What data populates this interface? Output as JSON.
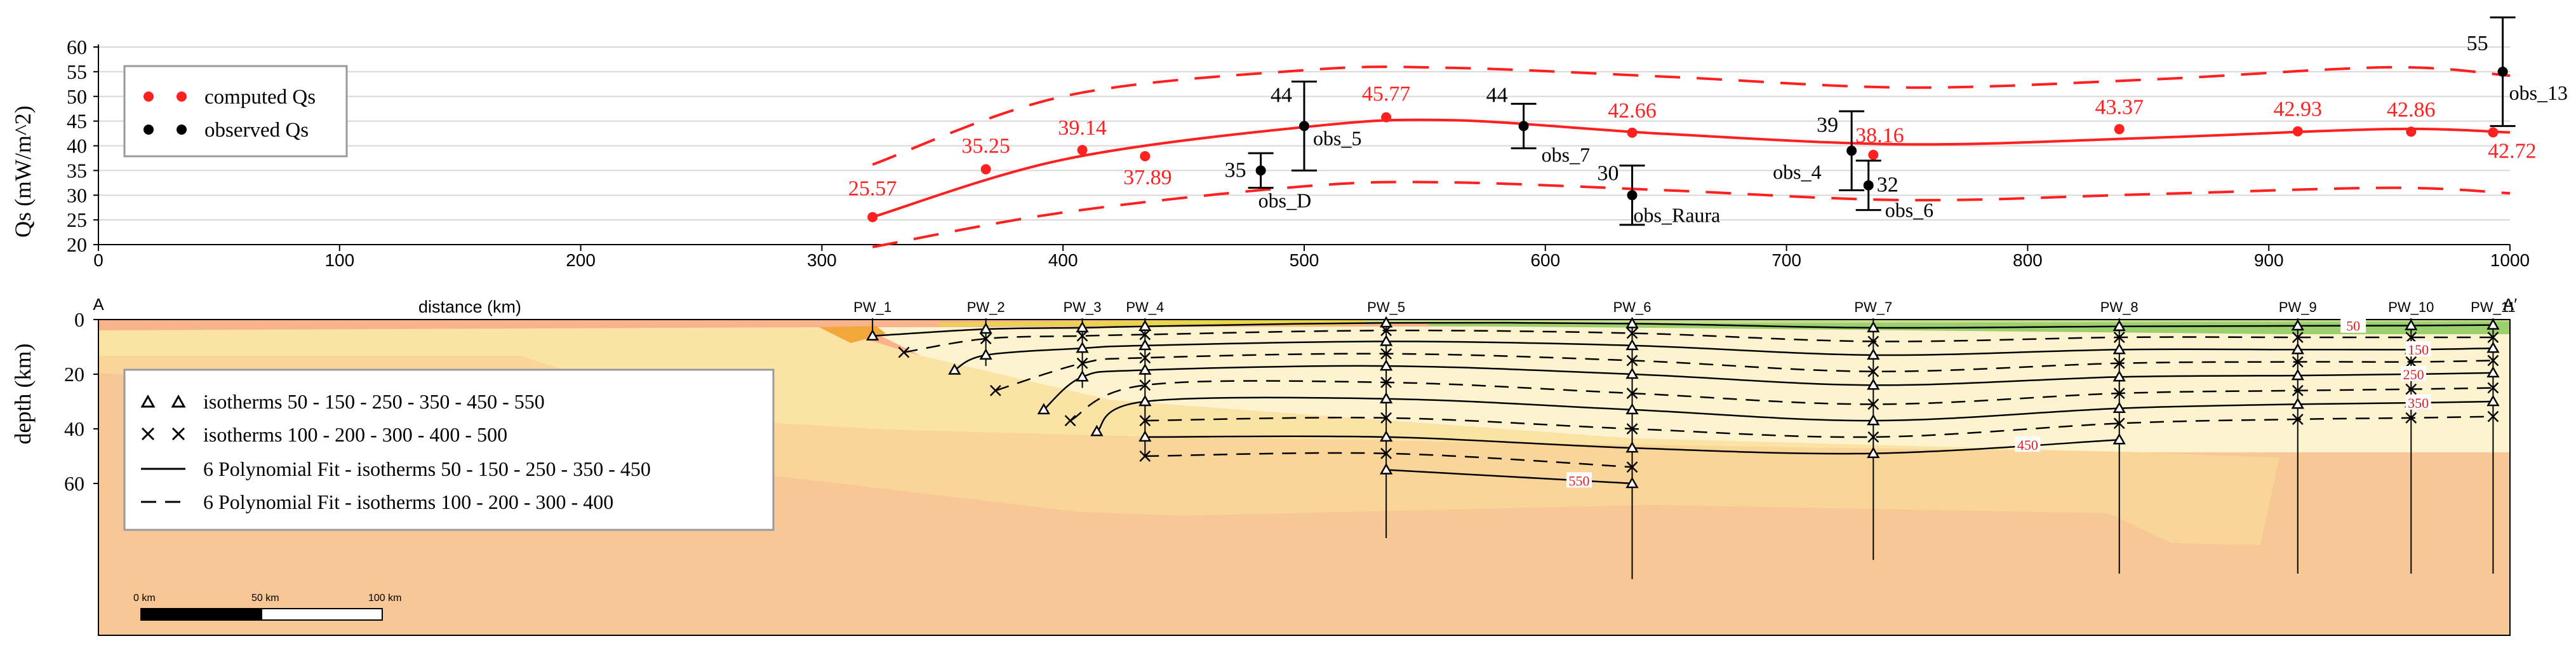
{
  "colors": {
    "computed": "#ff2020",
    "observed": "#000000",
    "envelope": "#ff2020",
    "grid": "#d8d8d8",
    "axis": "#000000",
    "crust_sediment": "#fde9b8",
    "crust_upper": "#f7c795",
    "crust_lower": "#f9b38c",
    "mantle": "#ff8080",
    "mid_layer": "#fbe3a6",
    "slab": "#fad59a",
    "wedge": "#fdf3cf",
    "green_surface": "#9ccf6d",
    "surface_cover": "#c6dc8e",
    "yellow_surface": "#e7d64a",
    "orange_unit": "#f2a73b",
    "iso_label": "#e02020"
  },
  "chart_data": [
    {
      "type": "scatter",
      "title": "",
      "xlabel": "",
      "ylabel": "Qs (mW/m^2)",
      "xlim": [
        0,
        1000
      ],
      "ylim": [
        20,
        60
      ],
      "xticks": [
        0,
        100,
        200,
        300,
        400,
        500,
        600,
        700,
        800,
        900,
        1000
      ],
      "yticks": [
        20,
        25,
        30,
        35,
        40,
        45,
        50,
        55,
        60
      ],
      "grid": true,
      "legend": "top-left",
      "legend_entries": [
        "computed Qs",
        "observed Qs"
      ],
      "computed": [
        {
          "x": 321,
          "y": 25.57,
          "label": "25.57"
        },
        {
          "x": 368,
          "y": 35.25,
          "label": "35.25"
        },
        {
          "x": 408,
          "y": 39.14,
          "label": "39.14"
        },
        {
          "x": 434,
          "y": 37.89,
          "label": "37.89"
        },
        {
          "x": 534,
          "y": 45.77,
          "label": "45.77"
        },
        {
          "x": 636,
          "y": 42.66,
          "label": "42.66"
        },
        {
          "x": 736,
          "y": 38.16,
          "label": "38.16"
        },
        {
          "x": 838,
          "y": 43.37,
          "label": "43.37"
        },
        {
          "x": 912,
          "y": 42.93,
          "label": "42.93"
        },
        {
          "x": 959,
          "y": 42.86,
          "label": "42.86"
        },
        {
          "x": 993,
          "y": 42.72,
          "label": "42.72"
        }
      ],
      "observed": [
        {
          "x": 482,
          "y": 35,
          "err": 3.5,
          "value_label": "35",
          "name": "obs_D"
        },
        {
          "x": 500,
          "y": 44,
          "err": 9,
          "value_label": "44",
          "name": "obs_5"
        },
        {
          "x": 591,
          "y": 44,
          "err": 4.5,
          "value_label": "44",
          "name": "obs_7"
        },
        {
          "x": 636,
          "y": 30,
          "err": 6,
          "value_label": "30",
          "name": "obs_Raura"
        },
        {
          "x": 727,
          "y": 39,
          "err": 8,
          "value_label": "39",
          "name": "obs_4"
        },
        {
          "x": 734,
          "y": 32,
          "err": 5,
          "value_label": "32",
          "name": "obs_6"
        },
        {
          "x": 997,
          "y": 55,
          "err": 11,
          "value_label": "55",
          "name": "obs_13"
        }
      ],
      "fit_curve": {
        "x": [
          321,
          400,
          500,
          560,
          650,
          750,
          850,
          950,
          1000
        ],
        "y": [
          25.57,
          37.2,
          43.8,
          45.2,
          42.4,
          40.3,
          41.6,
          43.4,
          42.72
        ]
      },
      "upper_envelope": {
        "x": [
          321,
          400,
          500,
          560,
          650,
          750,
          850,
          950,
          1000
        ],
        "y": [
          36.2,
          50,
          55.3,
          55.8,
          54,
          51.8,
          53.4,
          55.9,
          54.2
        ]
      },
      "lower_envelope": {
        "x": [
          321,
          400,
          500,
          560,
          650,
          750,
          850,
          950,
          1000
        ],
        "y": [
          19.5,
          26.5,
          31.8,
          32.6,
          31,
          29,
          30.2,
          31.5,
          30.4
        ]
      }
    },
    {
      "type": "cross-section",
      "xlabel": "distance (km)",
      "ylabel": "depth (km)",
      "xlim": [
        0,
        1000
      ],
      "ylim": [
        0,
        130
      ],
      "yticks": [
        0,
        20,
        40,
        60
      ],
      "profile_start": "A",
      "profile_end": "A′",
      "wells": [
        {
          "name": "PW_1",
          "x": 321,
          "depth": 6
        },
        {
          "name": "PW_2",
          "x": 368,
          "depth": 17
        },
        {
          "name": "PW_3",
          "x": 408,
          "depth": 25
        },
        {
          "name": "PW_4",
          "x": 434,
          "depth": 50
        },
        {
          "name": "PW_5",
          "x": 534,
          "depth": 80
        },
        {
          "name": "PW_6",
          "x": 636,
          "depth": 95
        },
        {
          "name": "PW_7",
          "x": 736,
          "depth": 88
        },
        {
          "name": "PW_8",
          "x": 838,
          "depth": 93
        },
        {
          "name": "PW_9",
          "x": 912,
          "depth": 93
        },
        {
          "name": "PW_10",
          "x": 959,
          "depth": 93
        },
        {
          "name": "PW_11",
          "x": 993,
          "depth": 93
        }
      ],
      "isotherms": [
        {
          "temp": 50,
          "kind": "triangle",
          "label": "50",
          "label_x": 935,
          "points": [
            [
              321,
              6
            ],
            [
              368,
              3.5
            ],
            [
              408,
              3
            ],
            [
              434,
              2.5
            ],
            [
              534,
              1.2
            ],
            [
              636,
              1.5
            ],
            [
              736,
              3
            ],
            [
              838,
              2.5
            ],
            [
              912,
              2.3
            ],
            [
              959,
              2.2
            ],
            [
              993,
              2
            ]
          ]
        },
        {
          "temp": 100,
          "kind": "cross",
          "label": "",
          "label_x": null,
          "points": [
            [
              334,
              12
            ],
            [
              368,
              7
            ],
            [
              408,
              6
            ],
            [
              434,
              5.5
            ],
            [
              534,
              4
            ],
            [
              636,
              5
            ],
            [
              736,
              8
            ],
            [
              838,
              6.5
            ],
            [
              912,
              6.5
            ],
            [
              959,
              6.5
            ],
            [
              993,
              6.5
            ]
          ]
        },
        {
          "temp": 150,
          "kind": "triangle",
          "label": "150",
          "label_x": 962,
          "points": [
            [
              355,
              18.5
            ],
            [
              368,
              13
            ],
            [
              408,
              10.5
            ],
            [
              434,
              9.5
            ],
            [
              534,
              8
            ],
            [
              636,
              9.5
            ],
            [
              736,
              13
            ],
            [
              838,
              11
            ],
            [
              912,
              11
            ],
            [
              959,
              11
            ],
            [
              993,
              10.5
            ]
          ]
        },
        {
          "temp": 200,
          "kind": "cross",
          "label": "",
          "label_x": null,
          "points": [
            [
              372,
              26
            ],
            [
              408,
              16
            ],
            [
              434,
              14
            ],
            [
              534,
              12.5
            ],
            [
              636,
              15
            ],
            [
              736,
              19
            ],
            [
              838,
              16
            ],
            [
              912,
              15.5
            ],
            [
              959,
              15.5
            ],
            [
              993,
              15
            ]
          ]
        },
        {
          "temp": 250,
          "kind": "triangle",
          "label": "250",
          "label_x": 960,
          "points": [
            [
              392,
              33
            ],
            [
              408,
              21
            ],
            [
              434,
              18.5
            ],
            [
              534,
              17
            ],
            [
              636,
              20
            ],
            [
              736,
              24
            ],
            [
              838,
              21
            ],
            [
              912,
              20.5
            ],
            [
              959,
              20
            ],
            [
              993,
              19.5
            ]
          ]
        },
        {
          "temp": 300,
          "kind": "cross",
          "label": "",
          "label_x": null,
          "points": [
            [
              403,
              37
            ],
            [
              434,
              24
            ],
            [
              534,
              23
            ],
            [
              636,
              27
            ],
            [
              736,
              31
            ],
            [
              838,
              27
            ],
            [
              912,
              26
            ],
            [
              959,
              25.5
            ],
            [
              993,
              25
            ]
          ]
        },
        {
          "temp": 350,
          "kind": "triangle",
          "label": "350",
          "label_x": 962,
          "points": [
            [
              414,
              41
            ],
            [
              434,
              30
            ],
            [
              534,
              29
            ],
            [
              636,
              33
            ],
            [
              736,
              37
            ],
            [
              838,
              32.5
            ],
            [
              912,
              31
            ],
            [
              959,
              30.5
            ],
            [
              993,
              30
            ]
          ]
        },
        {
          "temp": 400,
          "kind": "cross",
          "label": "",
          "label_x": null,
          "points": [
            [
              434,
              37
            ],
            [
              534,
              36
            ],
            [
              636,
              40
            ],
            [
              736,
              43
            ],
            [
              838,
              38
            ],
            [
              912,
              36.5
            ],
            [
              959,
              36
            ],
            [
              993,
              35.5
            ]
          ]
        },
        {
          "temp": 450,
          "kind": "triangle",
          "label": "450",
          "label_x": 800,
          "points": [
            [
              434,
              43
            ],
            [
              534,
              43
            ],
            [
              636,
              47
            ],
            [
              736,
              49
            ],
            [
              838,
              44
            ]
          ]
        },
        {
          "temp": 500,
          "kind": "cross",
          "label": "",
          "label_x": null,
          "points": [
            [
              434,
              50
            ],
            [
              534,
              49
            ],
            [
              636,
              54
            ]
          ]
        },
        {
          "temp": 550,
          "kind": "triangle",
          "label": "550",
          "label_x": 614,
          "points": [
            [
              534,
              55
            ],
            [
              636,
              60
            ]
          ]
        }
      ],
      "legend": "left",
      "legend_entries": [
        "isotherms 50 - 150 - 250 - 350 - 450 - 550",
        "isotherms 100 - 200 - 300 - 400 - 500",
        "6 Polynomial Fit  - isotherms 50 - 150 - 250 - 350 - 450",
        "6 Polynomial Fit - isotherms 100 - 200 - 300 - 400"
      ],
      "scale_bar": {
        "labels": [
          "0 km",
          "50 km",
          "100 km"
        ]
      }
    }
  ]
}
